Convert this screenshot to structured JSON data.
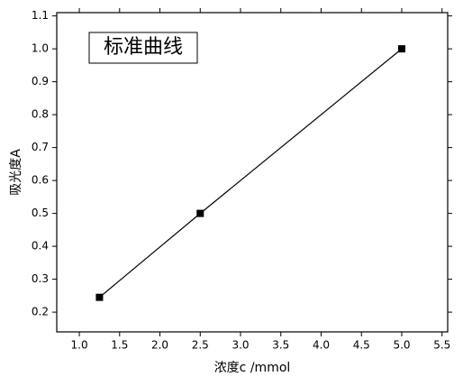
{
  "chart_data": {
    "type": "line",
    "annotation": "标准曲线",
    "x_label": "浓度c /mmol",
    "y_label": "吸光度A",
    "x": [
      1.25,
      2.5,
      5.0
    ],
    "series": [
      {
        "color": "#000000",
        "values": [
          0.245,
          0.5,
          1.0
        ]
      }
    ],
    "xlim": [
      0.72,
      5.57
    ],
    "xticks": [
      {
        "value": 1,
        "label": "1.0"
      },
      1.5,
      {
        "value": 2,
        "label": "2.0"
      },
      2.5,
      {
        "value": 3,
        "label": "3.0"
      },
      3.5,
      {
        "value": 4,
        "label": "4.0"
      },
      4.5,
      {
        "value": 5,
        "label": "5.0"
      },
      5.5
    ],
    "ylim": [
      0.14,
      1.11
    ],
    "yticks": [
      0.2,
      0.3,
      0.4,
      0.5,
      0.6,
      0.7,
      0.8,
      0.9,
      {
        "value": 1,
        "label": "1.0"
      },
      1.1
    ],
    "marker": "square"
  }
}
